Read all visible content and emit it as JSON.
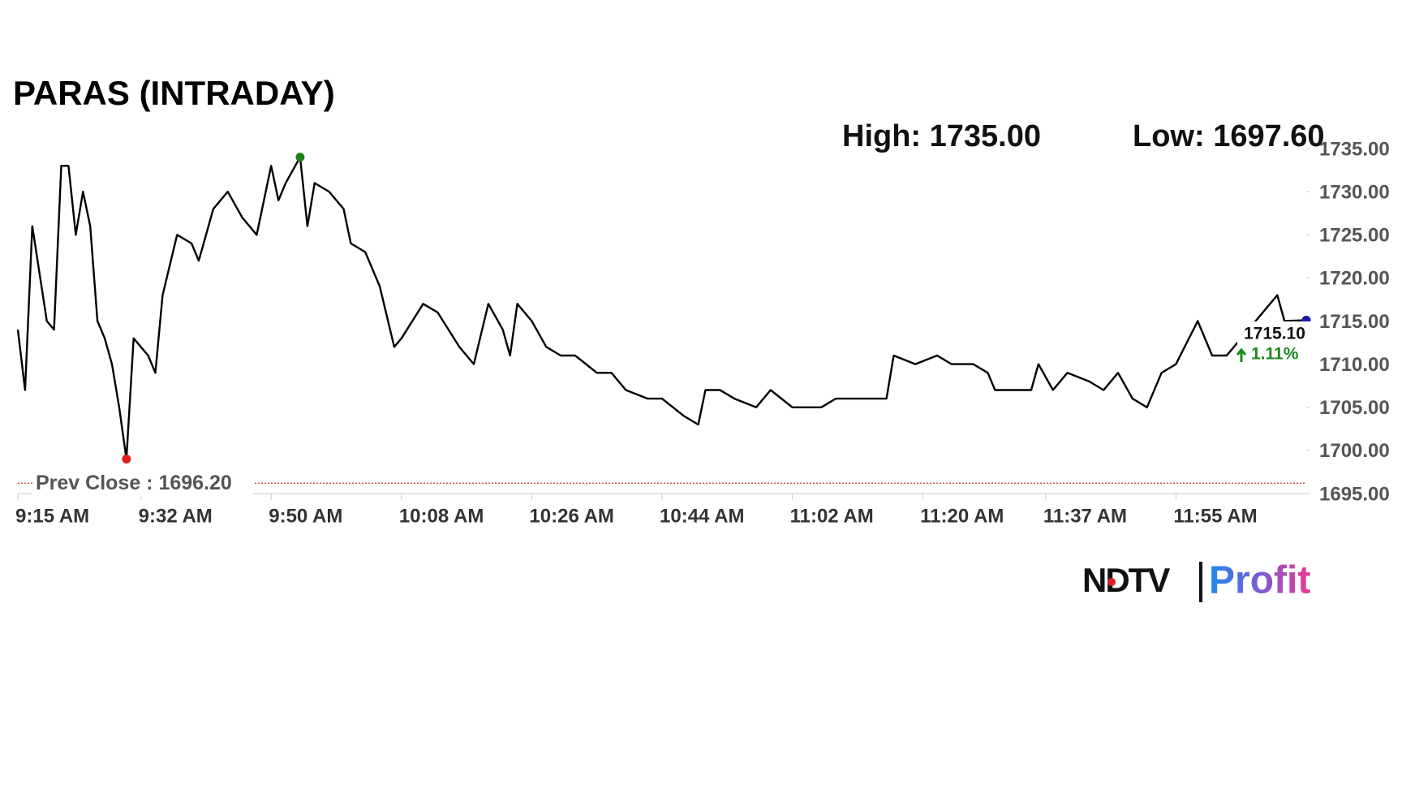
{
  "chart_data": {
    "type": "line",
    "title": "PARAS (INTRADAY)",
    "high": "High: 1735.00",
    "low": "Low: 1697.60",
    "prev_close": {
      "value": 1696.2,
      "label": "Prev Close : 1696.20",
      "color": "#c0392b"
    },
    "last_price": "1715.10",
    "change": "1.11%",
    "logo": {
      "left": "NDTV",
      "right": "Profit"
    },
    "xlim": [
      "9:15 AM",
      "12:13 PM"
    ],
    "xticks": [
      "9:15 AM",
      "9:32 AM",
      "9:50 AM",
      "10:08 AM",
      "10:26 AM",
      "10:44 AM",
      "11:02 AM",
      "11:20 AM",
      "11:37 AM",
      "11:55 AM"
    ],
    "ylim": [
      1695,
      1735
    ],
    "yticks": [
      {
        "value": 1695,
        "label": "1695.00"
      },
      {
        "value": 1700,
        "label": "1700.00"
      },
      {
        "value": 1705,
        "label": "1705.00"
      },
      {
        "value": 1710,
        "label": "1710.00"
      },
      {
        "value": 1715,
        "label": "1715.00"
      },
      {
        "value": 1720,
        "label": "1720.00"
      },
      {
        "value": 1725,
        "label": "1725.00"
      },
      {
        "value": 1730,
        "label": "1730.00"
      },
      {
        "value": 1735,
        "label": "1735.00"
      }
    ],
    "x": [
      "9:15 AM",
      "9:16 AM",
      "9:17 AM",
      "9:19 AM",
      "9:20 AM",
      "9:21 AM",
      "9:22 AM",
      "9:23 AM",
      "9:24 AM",
      "9:25 AM",
      "9:26 AM",
      "9:27 AM",
      "9:28 AM",
      "9:29 AM",
      "9:30 AM",
      "9:31 AM",
      "9:33 AM",
      "9:34 AM",
      "9:35 AM",
      "9:37 AM",
      "9:39 AM",
      "9:40 AM",
      "9:42 AM",
      "9:44 AM",
      "9:46 AM",
      "9:48 AM",
      "9:50 AM",
      "9:51 AM",
      "9:52 AM",
      "9:54 AM",
      "9:55 AM",
      "9:56 AM",
      "9:58 AM",
      "10:00 AM",
      "10:01 AM",
      "10:03 AM",
      "10:05 AM",
      "10:07 AM",
      "10:08 AM",
      "10:11 AM",
      "10:13 AM",
      "10:16 AM",
      "10:18 AM",
      "10:20 AM",
      "10:22 AM",
      "10:23 AM",
      "10:24 AM",
      "10:26 AM",
      "10:28 AM",
      "10:30 AM",
      "10:32 AM",
      "10:35 AM",
      "10:37 AM",
      "10:39 AM",
      "10:42 AM",
      "10:44 AM",
      "10:47 AM",
      "10:49 AM",
      "10:50 AM",
      "10:52 AM",
      "10:54 AM",
      "10:57 AM",
      "10:59 AM",
      "11:02 AM",
      "11:04 AM",
      "11:06 AM",
      "11:08 AM",
      "11:10 AM",
      "11:13 AM",
      "11:15 AM",
      "11:16 AM",
      "11:19 AM",
      "11:22 AM",
      "11:24 AM",
      "11:27 AM",
      "11:29 AM",
      "11:30 AM",
      "11:33 AM",
      "11:35 AM",
      "11:36 AM",
      "11:38 AM",
      "11:40 AM",
      "11:43 AM",
      "11:45 AM",
      "11:47 AM",
      "11:49 AM",
      "11:51 AM",
      "11:53 AM",
      "11:55 AM",
      "11:58 AM",
      "12:00 PM",
      "12:02 PM",
      "12:03 PM",
      "12:09 PM",
      "12:10 PM",
      "12:13 PM"
    ],
    "series": [
      {
        "name": "PARAS",
        "color": "#000000",
        "values": [
          1714,
          1707,
          1726,
          1715,
          1714,
          1733,
          1733,
          1725,
          1730,
          1726,
          1715,
          1713,
          1710,
          1705,
          1699,
          1713,
          1711,
          1709,
          1718,
          1725,
          1724,
          1722,
          1728,
          1730,
          1727,
          1725,
          1733,
          1729,
          1731,
          1734,
          1726,
          1731,
          1730,
          1728,
          1724,
          1723,
          1719,
          1712,
          1713,
          1717,
          1716,
          1712,
          1710,
          1717,
          1714,
          1711,
          1717,
          1715,
          1712,
          1711,
          1711,
          1709,
          1709,
          1707,
          1706,
          1706,
          1704,
          1703,
          1707,
          1707,
          1706,
          1705,
          1707,
          1705,
          1705,
          1705,
          1706,
          1706,
          1706,
          1706,
          1711,
          1710,
          1711,
          1710,
          1710,
          1709,
          1707,
          1707,
          1707,
          1710,
          1707,
          1709,
          1708,
          1707,
          1709,
          1706,
          1705,
          1709,
          1710,
          1715,
          1711,
          1711,
          1712,
          1718,
          1715,
          1715.1
        ]
      }
    ],
    "marker_colors": {
      "high": "#1a7f1a",
      "low": "#e01e1e",
      "last": "#1a1aa8"
    }
  }
}
